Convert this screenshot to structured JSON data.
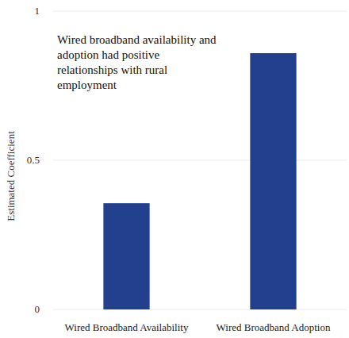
{
  "chart_data": {
    "type": "bar",
    "y_label": "Estimated Coefficient",
    "annotation": "Wired broadband availability and adoption had positive relationships with rural employment",
    "categories": [
      "Wired Broadband Availability",
      "Wired Broadband Adoption"
    ],
    "values": [
      0.356,
      0.859
    ],
    "color": "#23408e",
    "ylim": [
      0,
      1
    ],
    "yticks": [
      0,
      0.5,
      1
    ],
    "grid": true
  }
}
